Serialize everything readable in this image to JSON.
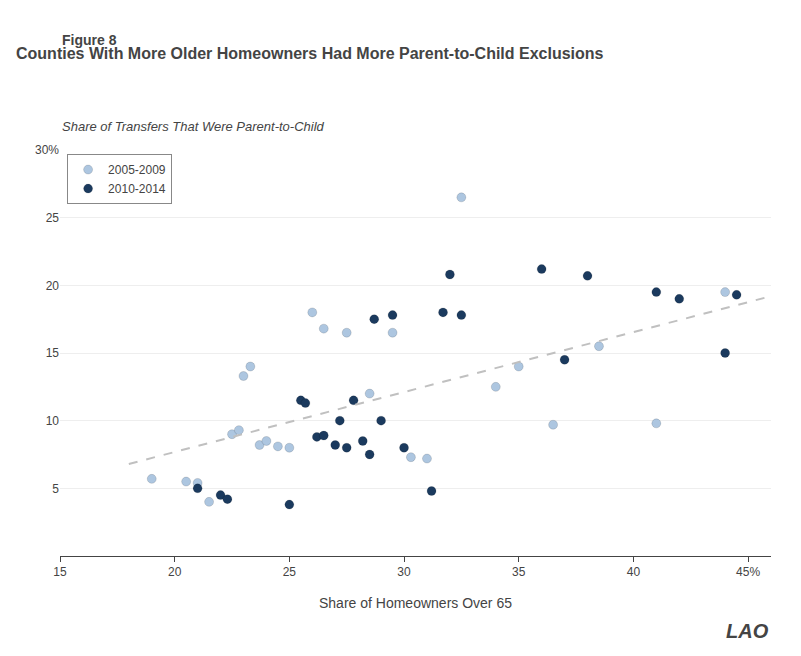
{
  "chart_data": {
    "type": "scatter",
    "title": "Counties With More Older Homeowners Had More Parent-to-Child Exclusions",
    "annotations": [
      "Figure 8",
      "LAO"
    ],
    "ylabel": "Share of Transfers That Were Parent-to-Child",
    "xlabel": "Share of Homeowners Over 65",
    "xlim": [
      15,
      46
    ],
    "ylim": [
      0,
      30
    ],
    "xticks": [
      15,
      20,
      25,
      30,
      35,
      40,
      {
        "value": 45,
        "label": "45%"
      }
    ],
    "yticks": [
      {
        "value": 0,
        "label": null
      },
      5,
      10,
      15,
      20,
      25,
      {
        "value": 30,
        "label": "30%"
      }
    ],
    "grid": "y",
    "legend": "upper left",
    "series": [
      {
        "name": "2005-2009",
        "color": "#adc6e0",
        "marker": "circle",
        "x": [
          19.0,
          20.5,
          21.0,
          21.5,
          22.5,
          22.8,
          23.0,
          23.3,
          23.7,
          24.0,
          24.5,
          25.0,
          26.0,
          26.5,
          27.5,
          28.5,
          29.5,
          30.3,
          31.0,
          32.5,
          34.0,
          35.0,
          36.5,
          38.5,
          41.0,
          44.0
        ],
        "values": [
          5.7,
          5.5,
          5.4,
          4.0,
          9.0,
          9.3,
          13.3,
          14.0,
          8.2,
          8.5,
          8.1,
          8.0,
          18.0,
          16.8,
          16.5,
          12.0,
          16.5,
          7.3,
          7.2,
          26.5,
          12.5,
          14.0,
          9.7,
          15.5,
          9.8,
          19.5
        ]
      },
      {
        "name": "2010-2014",
        "color": "#1b3a5e",
        "marker": "circle",
        "x": [
          21.0,
          22.0,
          22.3,
          25.0,
          25.5,
          25.7,
          26.2,
          26.5,
          27.0,
          27.2,
          27.5,
          27.8,
          28.2,
          28.5,
          28.7,
          29.0,
          29.5,
          30.0,
          31.2,
          31.7,
          32.0,
          32.5,
          36.0,
          37.0,
          38.0,
          41.0,
          42.0,
          44.0,
          44.5
        ],
        "values": [
          5.0,
          4.5,
          4.2,
          3.8,
          11.5,
          11.3,
          8.8,
          8.9,
          8.2,
          10.0,
          8.0,
          11.5,
          8.5,
          7.5,
          17.5,
          10.0,
          17.8,
          8.0,
          4.8,
          18.0,
          20.8,
          17.8,
          21.2,
          14.5,
          20.7,
          19.5,
          19.0,
          15.0,
          19.3
        ]
      },
      {
        "type": "line",
        "line_style": "dashed",
        "color": "#c0c0c0",
        "x": [
          18,
          46
        ],
        "values": [
          6.8,
          19.2
        ]
      }
    ]
  }
}
